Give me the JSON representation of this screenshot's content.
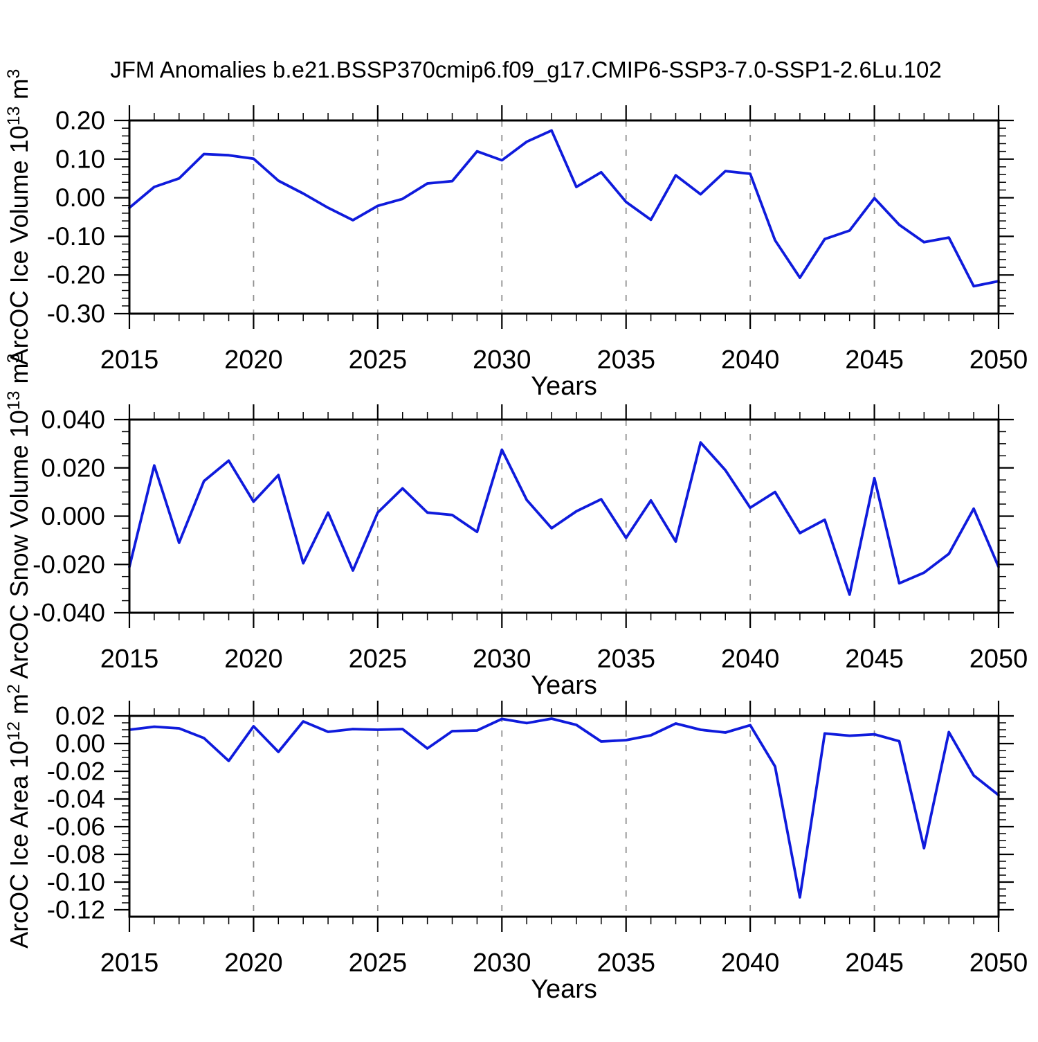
{
  "title": "JFM Anomalies b.e21.BSSP370cmip6.f09_g17.CMIP6-SSP3-7.0-SSP1-2.6Lu.102",
  "colors": {
    "line": "#0f1bdc",
    "axis": "#000000",
    "grid": "#909090",
    "background": "#ffffff"
  },
  "chart_data": [
    {
      "type": "line",
      "panel": "ice-volume",
      "ylabel_parts": {
        "base": "ArcOC Ice Volume 10",
        "exp1": "13",
        "mid": " m",
        "exp2": "3"
      },
      "xlabel": "Years",
      "x": [
        2015,
        2016,
        2017,
        2018,
        2019,
        2020,
        2021,
        2022,
        2023,
        2024,
        2025,
        2026,
        2027,
        2028,
        2029,
        2030,
        2031,
        2032,
        2033,
        2034,
        2035,
        2036,
        2037,
        2038,
        2039,
        2040,
        2041,
        2042,
        2043,
        2044,
        2045,
        2046,
        2047,
        2048,
        2049,
        2050
      ],
      "values": [
        -0.026,
        0.028,
        0.05,
        0.113,
        0.11,
        0.101,
        0.044,
        0.011,
        -0.026,
        -0.058,
        -0.021,
        -0.003,
        0.037,
        0.043,
        0.12,
        0.097,
        0.145,
        0.174,
        0.028,
        0.066,
        -0.011,
        -0.057,
        0.058,
        0.009,
        0.069,
        0.062,
        -0.11,
        -0.207,
        -0.107,
        -0.085,
        -0.001,
        -0.07,
        -0.115,
        -0.103,
        -0.229,
        -0.216
      ],
      "ylim": [
        -0.3,
        0.2
      ],
      "xlim": [
        2015,
        2050
      ],
      "y_tick_values": [
        0.2,
        0.1,
        0.0,
        -0.1,
        -0.2,
        -0.3
      ],
      "y_tick_labels": [
        "0.20",
        "0.10",
        "0.00",
        "-0.10",
        "-0.20",
        "-0.30"
      ],
      "y_minor_step": 0.02,
      "x_tick_values": [
        2015,
        2020,
        2025,
        2030,
        2035,
        2040,
        2045,
        2050
      ],
      "x_tick_labels": [
        "2015",
        "2020",
        "2025",
        "2030",
        "2035",
        "2040",
        "2045",
        "2050"
      ],
      "x_minor_step": 1,
      "grid_x": [
        2020,
        2025,
        2030,
        2035,
        2040,
        2045
      ],
      "grid_on": "vertical-dashed-only",
      "legend": "none"
    },
    {
      "type": "line",
      "panel": "snow-volume",
      "ylabel_parts": {
        "base": "ArcOC Snow Volume 10",
        "exp1": "13",
        "mid": " m",
        "exp2": "3"
      },
      "xlabel": "Years",
      "x": [
        2015,
        2016,
        2017,
        2018,
        2019,
        2020,
        2021,
        2022,
        2023,
        2024,
        2025,
        2026,
        2027,
        2028,
        2029,
        2030,
        2031,
        2032,
        2033,
        2034,
        2035,
        2036,
        2037,
        2038,
        2039,
        2040,
        2041,
        2042,
        2043,
        2044,
        2045,
        2046,
        2047,
        2048,
        2049,
        2050
      ],
      "values": [
        -0.021,
        0.021,
        -0.011,
        0.0145,
        0.023,
        0.006,
        0.017,
        -0.0195,
        0.0015,
        -0.0225,
        0.0015,
        0.0115,
        0.0015,
        0.0005,
        -0.0065,
        0.0275,
        0.0067,
        -0.005,
        0.002,
        0.007,
        -0.009,
        0.0065,
        -0.0105,
        0.0305,
        0.019,
        0.0035,
        0.01,
        -0.007,
        -0.0015,
        -0.0325,
        0.0157,
        -0.0278,
        -0.0234,
        -0.0156,
        0.0031,
        -0.021
      ],
      "ylim": [
        -0.04,
        0.04
      ],
      "xlim": [
        2015,
        2050
      ],
      "y_tick_values": [
        0.04,
        0.02,
        0.0,
        -0.02,
        -0.04
      ],
      "y_tick_labels": [
        "0.040",
        "0.020",
        "0.000",
        "-0.020",
        "-0.040"
      ],
      "y_minor_step": 0.005,
      "x_tick_values": [
        2015,
        2020,
        2025,
        2030,
        2035,
        2040,
        2045,
        2050
      ],
      "x_tick_labels": [
        "2015",
        "2020",
        "2025",
        "2030",
        "2035",
        "2040",
        "2045",
        "2050"
      ],
      "x_minor_step": 1,
      "grid_x": [
        2020,
        2025,
        2030,
        2035,
        2040,
        2045
      ],
      "grid_on": "vertical-dashed-only",
      "legend": "none"
    },
    {
      "type": "line",
      "panel": "ice-area",
      "ylabel_parts": {
        "base": "ArcOC Ice Area 10",
        "exp1": "12",
        "mid": " m",
        "exp2": "2"
      },
      "xlabel": "Years",
      "x": [
        2015,
        2016,
        2017,
        2018,
        2019,
        2020,
        2021,
        2022,
        2023,
        2024,
        2025,
        2026,
        2027,
        2028,
        2029,
        2030,
        2031,
        2032,
        2033,
        2034,
        2035,
        2036,
        2037,
        2038,
        2039,
        2040,
        2041,
        2042,
        2043,
        2044,
        2045,
        2046,
        2047,
        2048,
        2049,
        2050
      ],
      "values": [
        0.01,
        0.0122,
        0.011,
        0.004,
        -0.0125,
        0.0125,
        -0.006,
        0.016,
        0.0085,
        0.0105,
        0.01,
        0.0105,
        -0.0035,
        0.009,
        0.0095,
        0.0178,
        0.0148,
        0.018,
        0.0135,
        0.0015,
        0.0025,
        0.006,
        0.0145,
        0.01,
        0.008,
        0.0133,
        -0.0165,
        -0.111,
        0.0073,
        0.0057,
        0.0067,
        0.0017,
        -0.0755,
        0.0083,
        -0.023,
        -0.0372
      ],
      "ylim": [
        -0.125,
        0.02
      ],
      "xlim": [
        2015,
        2050
      ],
      "y_tick_values": [
        0.02,
        0.0,
        -0.02,
        -0.04,
        -0.06,
        -0.08,
        -0.1,
        -0.12
      ],
      "y_tick_labels": [
        "0.02",
        "0.00",
        "-0.02",
        "-0.04",
        "-0.06",
        "-0.08",
        "-0.10",
        "-0.12"
      ],
      "y_minor_step": 0.005,
      "x_tick_values": [
        2015,
        2020,
        2025,
        2030,
        2035,
        2040,
        2045,
        2050
      ],
      "x_tick_labels": [
        "2015",
        "2020",
        "2025",
        "2030",
        "2035",
        "2040",
        "2045",
        "2050"
      ],
      "x_minor_step": 1,
      "grid_x": [
        2020,
        2025,
        2030,
        2035,
        2040,
        2045
      ],
      "grid_on": "vertical-dashed-only",
      "legend": "none"
    }
  ]
}
